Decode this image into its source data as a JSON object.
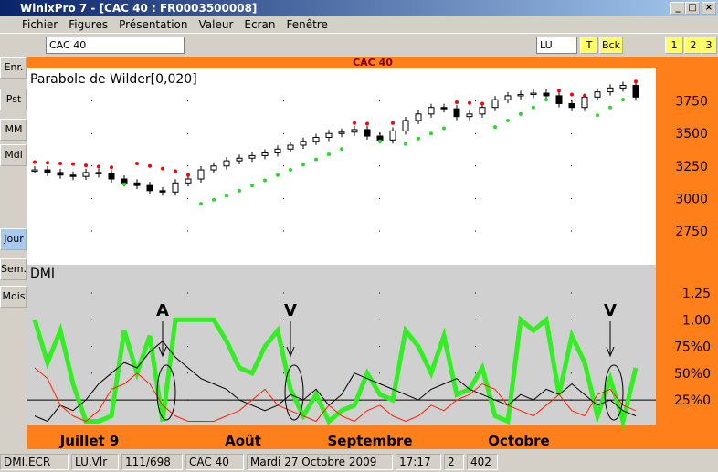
{
  "window": {
    "title": "WinixPro 7 - [CAC 40 : FR0003500008]"
  },
  "menu": [
    "Fichier",
    "Figures",
    "Présentation",
    "Valeur",
    "Ecran",
    "Fenêtre"
  ],
  "toolbar": {
    "symbol": "CAC 40",
    "period": "LU",
    "buttons": [
      "T",
      "Bck",
      "1",
      "2",
      "3"
    ]
  },
  "sidebar": [
    "Enr.",
    "Pst",
    "MM",
    "Mdl",
    "Jour",
    "Sem.",
    "Mois"
  ],
  "chart_data": [
    {
      "type": "candlestick",
      "title": "CAC 40",
      "label": "Parabole de Wilder[0,020]",
      "close": [
        3220,
        3200,
        3180,
        3170,
        3200,
        3190,
        3150,
        3120,
        3100,
        3060,
        3050,
        3120,
        3150,
        3220,
        3250,
        3290,
        3310,
        3330,
        3350,
        3380,
        3410,
        3440,
        3470,
        3500,
        3510,
        3530,
        3480,
        3450,
        3520,
        3600,
        3650,
        3700,
        3690,
        3630,
        3650,
        3700,
        3760,
        3790,
        3800,
        3810,
        3790,
        3730,
        3700,
        3780,
        3820,
        3850,
        3870,
        3780
      ],
      "sar": [
        3280,
        3275,
        3270,
        3265,
        3255,
        3245,
        3240,
        3110,
        3270,
        3250,
        3230,
        3210,
        3180,
        2960,
        2990,
        3020,
        3060,
        3100,
        3140,
        3180,
        3220,
        3260,
        3300,
        3340,
        3380,
        3580,
        3575,
        3440,
        3580,
        3420,
        3460,
        3500,
        3540,
        3740,
        3735,
        3730,
        3550,
        3600,
        3650,
        3700,
        3760,
        3830,
        3800,
        3790,
        3640,
        3700,
        3760,
        3900
      ],
      "sar_colors": [
        "#ff0000",
        "#22dd22"
      ],
      "ylim": [
        2490,
        4000
      ],
      "yticks": [
        2750,
        3000,
        3250,
        3500,
        3750
      ],
      "grid": true
    },
    {
      "type": "line",
      "title": "DMI",
      "series": [
        {
          "color": "#33ee22",
          "values": [
            1.0,
            0.6,
            0.9,
            0.4,
            0.05,
            0.05,
            0.1,
            0.9,
            0.5,
            0.85,
            0.05,
            1.0,
            1.0,
            1.0,
            1.0,
            0.8,
            0.55,
            0.5,
            0.75,
            0.9,
            0.35,
            0.1,
            0.3,
            0.05,
            0.15,
            0.2,
            0.5,
            0.3,
            0.25,
            0.9,
            0.75,
            0.5,
            0.85,
            0.3,
            0.35,
            0.55,
            0.1,
            0.05,
            1.0,
            0.9,
            1.0,
            0.3,
            0.85,
            0.6,
            0.1,
            0.45,
            0.05,
            0.55
          ]
        },
        {
          "color": "#000000",
          "values": [
            0.1,
            0.05,
            0.2,
            0.15,
            0.25,
            0.4,
            0.5,
            0.6,
            0.55,
            0.7,
            0.8,
            0.65,
            0.55,
            0.45,
            0.4,
            0.35,
            0.25,
            0.2,
            0.15,
            0.2,
            0.3,
            0.25,
            0.35,
            0.2,
            0.3,
            0.5,
            0.45,
            0.4,
            0.35,
            0.3,
            0.25,
            0.35,
            0.4,
            0.45,
            0.35,
            0.3,
            0.25,
            0.2,
            0.3,
            0.25,
            0.35,
            0.3,
            0.4,
            0.3,
            0.2,
            0.25,
            0.15,
            0.1
          ]
        },
        {
          "color": "#ff2200",
          "values": [
            0.55,
            0.45,
            0.2,
            0.1,
            0.05,
            0.15,
            0.35,
            0.4,
            0.5,
            0.4,
            0.2,
            0.1,
            0.05,
            0.05,
            0.05,
            0.1,
            0.15,
            0.25,
            0.35,
            0.2,
            0.15,
            0.1,
            0.05,
            0.2,
            0.1,
            0.05,
            0.15,
            0.2,
            0.1,
            0.05,
            0.1,
            0.2,
            0.15,
            0.25,
            0.3,
            0.4,
            0.35,
            0.2,
            0.15,
            0.1,
            0.2,
            0.3,
            0.15,
            0.1,
            0.3,
            0.35,
            0.2,
            0.15
          ]
        }
      ],
      "ylim": [
        0.02,
        1.515
      ],
      "yticks": [
        {
          "value": 0.25,
          "label": "25%0"
        },
        {
          "value": 0.5,
          "label": "50%0"
        },
        {
          "value": 0.75,
          "label": "75%0"
        },
        {
          "value": 1,
          "label": "1,00"
        },
        {
          "value": 1.25,
          "label": "1,25"
        }
      ],
      "reference_line": 0.25,
      "annotations": [
        {
          "text": "A",
          "index": 10
        },
        {
          "text": "V",
          "index": 20
        },
        {
          "text": "V",
          "index": 45
        }
      ]
    }
  ],
  "x_axis_labels": [
    "Juillet 9",
    "Août",
    "Septembre",
    "Octobre"
  ],
  "status_bar": [
    "DMI.ECR",
    "LU.Vlr",
    "111/698",
    "CAC 40",
    "Mardi 27 Octobre 2009",
    "17:17",
    "2",
    "402"
  ]
}
